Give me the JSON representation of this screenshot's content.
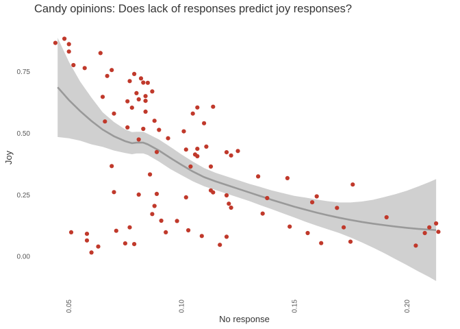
{
  "chart_data": {
    "type": "scatter",
    "title": "Candy opinions: Does lack of responses predict joy responses?",
    "xlabel": "No response",
    "ylabel": "Joy",
    "xlim": [
      0.0425,
      0.2145
    ],
    "ylim": [
      -0.15,
      0.93
    ],
    "x_ticks": [
      0.05,
      0.1,
      0.15,
      0.2
    ],
    "x_tick_labels": [
      "0.05",
      "0.10",
      "0.15",
      "0.20"
    ],
    "y_ticks": [
      0.0,
      0.25,
      0.5,
      0.75
    ],
    "y_tick_labels": [
      "0.00",
      "0.25",
      "0.50",
      "0.75"
    ],
    "grid": false,
    "colors": {
      "points": "#c0392b",
      "smooth_line": "#999999",
      "ribbon": "#d0d0d0"
    },
    "points": [
      [
        0.044,
        0.867
      ],
      [
        0.048,
        0.884
      ],
      [
        0.05,
        0.862
      ],
      [
        0.05,
        0.832
      ],
      [
        0.052,
        0.777
      ],
      [
        0.051,
        0.098
      ],
      [
        0.057,
        0.765
      ],
      [
        0.058,
        0.092
      ],
      [
        0.058,
        0.065
      ],
      [
        0.06,
        0.016
      ],
      [
        0.063,
        0.04
      ],
      [
        0.064,
        0.826
      ],
      [
        0.065,
        0.648
      ],
      [
        0.066,
        0.548
      ],
      [
        0.067,
        0.733
      ],
      [
        0.069,
        0.757
      ],
      [
        0.069,
        0.367
      ],
      [
        0.07,
        0.58
      ],
      [
        0.07,
        0.261
      ],
      [
        0.071,
        0.104
      ],
      [
        0.075,
        0.053
      ],
      [
        0.076,
        0.524
      ],
      [
        0.076,
        0.63
      ],
      [
        0.077,
        0.712
      ],
      [
        0.077,
        0.118
      ],
      [
        0.078,
        0.604
      ],
      [
        0.079,
        0.741
      ],
      [
        0.079,
        0.05
      ],
      [
        0.08,
        0.663
      ],
      [
        0.081,
        0.638
      ],
      [
        0.081,
        0.475
      ],
      [
        0.081,
        0.251
      ],
      [
        0.082,
        0.723
      ],
      [
        0.083,
        0.706
      ],
      [
        0.083,
        0.518
      ],
      [
        0.084,
        0.651
      ],
      [
        0.084,
        0.632
      ],
      [
        0.084,
        0.588
      ],
      [
        0.085,
        0.705
      ],
      [
        0.086,
        0.333
      ],
      [
        0.087,
        0.67
      ],
      [
        0.087,
        0.172
      ],
      [
        0.088,
        0.551
      ],
      [
        0.088,
        0.205
      ],
      [
        0.089,
        0.424
      ],
      [
        0.089,
        0.254
      ],
      [
        0.09,
        0.514
      ],
      [
        0.091,
        0.145
      ],
      [
        0.093,
        0.098
      ],
      [
        0.094,
        0.48
      ],
      [
        0.098,
        0.144
      ],
      [
        0.101,
        0.508
      ],
      [
        0.102,
        0.434
      ],
      [
        0.102,
        0.24
      ],
      [
        0.103,
        0.106
      ],
      [
        0.104,
        0.365
      ],
      [
        0.105,
        0.58
      ],
      [
        0.106,
        0.414
      ],
      [
        0.107,
        0.437
      ],
      [
        0.107,
        0.605
      ],
      [
        0.107,
        0.407
      ],
      [
        0.109,
        0.083
      ],
      [
        0.11,
        0.541
      ],
      [
        0.111,
        0.446
      ],
      [
        0.113,
        0.365
      ],
      [
        0.113,
        0.268
      ],
      [
        0.114,
        0.608
      ],
      [
        0.114,
        0.26
      ],
      [
        0.117,
        0.047
      ],
      [
        0.12,
        0.423
      ],
      [
        0.12,
        0.248
      ],
      [
        0.12,
        0.08
      ],
      [
        0.121,
        0.214
      ],
      [
        0.122,
        0.41
      ],
      [
        0.122,
        0.198
      ],
      [
        0.125,
        0.428
      ],
      [
        0.134,
        0.325
      ],
      [
        0.136,
        0.174
      ],
      [
        0.138,
        0.237
      ],
      [
        0.147,
        0.318
      ],
      [
        0.148,
        0.121
      ],
      [
        0.156,
        0.095
      ],
      [
        0.158,
        0.22
      ],
      [
        0.16,
        0.244
      ],
      [
        0.162,
        0.054
      ],
      [
        0.169,
        0.197
      ],
      [
        0.172,
        0.118
      ],
      [
        0.175,
        0.06
      ],
      [
        0.176,
        0.292
      ],
      [
        0.191,
        0.159
      ],
      [
        0.204,
        0.044
      ],
      [
        0.208,
        0.095
      ],
      [
        0.21,
        0.118
      ],
      [
        0.213,
        0.134
      ],
      [
        0.214,
        0.1
      ]
    ],
    "smooth": [
      [
        0.045,
        0.687,
        0.485,
        0.888
      ],
      [
        0.05,
        0.635,
        0.48,
        0.79
      ],
      [
        0.055,
        0.59,
        0.47,
        0.71
      ],
      [
        0.06,
        0.55,
        0.455,
        0.645
      ],
      [
        0.065,
        0.515,
        0.445,
        0.585
      ],
      [
        0.07,
        0.488,
        0.43,
        0.546
      ],
      [
        0.075,
        0.468,
        0.42,
        0.516
      ],
      [
        0.078,
        0.46,
        0.415,
        0.505
      ],
      [
        0.08,
        0.462,
        0.418,
        0.506
      ],
      [
        0.083,
        0.462,
        0.418,
        0.506
      ],
      [
        0.085,
        0.455,
        0.412,
        0.498
      ],
      [
        0.09,
        0.43,
        0.385,
        0.475
      ],
      [
        0.095,
        0.4,
        0.355,
        0.445
      ],
      [
        0.1,
        0.372,
        0.33,
        0.414
      ],
      [
        0.105,
        0.345,
        0.305,
        0.385
      ],
      [
        0.11,
        0.322,
        0.285,
        0.359
      ],
      [
        0.115,
        0.305,
        0.27,
        0.34
      ],
      [
        0.12,
        0.29,
        0.255,
        0.325
      ],
      [
        0.125,
        0.275,
        0.24,
        0.31
      ],
      [
        0.13,
        0.26,
        0.225,
        0.295
      ],
      [
        0.135,
        0.245,
        0.208,
        0.282
      ],
      [
        0.14,
        0.23,
        0.192,
        0.268
      ],
      [
        0.145,
        0.216,
        0.175,
        0.257
      ],
      [
        0.15,
        0.202,
        0.158,
        0.246
      ],
      [
        0.155,
        0.19,
        0.141,
        0.239
      ],
      [
        0.16,
        0.178,
        0.125,
        0.231
      ],
      [
        0.165,
        0.167,
        0.11,
        0.224
      ],
      [
        0.17,
        0.157,
        0.095,
        0.219
      ],
      [
        0.175,
        0.148,
        0.077,
        0.219
      ],
      [
        0.18,
        0.14,
        0.057,
        0.223
      ],
      [
        0.185,
        0.133,
        0.036,
        0.23
      ],
      [
        0.19,
        0.127,
        0.013,
        0.241
      ],
      [
        0.195,
        0.121,
        -0.011,
        0.253
      ],
      [
        0.2,
        0.116,
        -0.035,
        0.267
      ],
      [
        0.205,
        0.112,
        -0.06,
        0.284
      ],
      [
        0.21,
        0.109,
        -0.084,
        0.302
      ],
      [
        0.213,
        0.107,
        -0.1,
        0.314
      ]
    ]
  }
}
